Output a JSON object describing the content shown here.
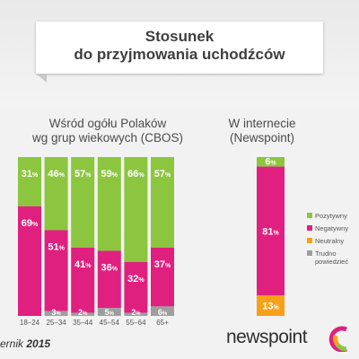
{
  "title": {
    "line1": "Stosunek",
    "line2": "do przyjmowania uchodźców"
  },
  "left_subtitle": {
    "line1": "Wśród ogółu Polaków",
    "line2": "wg grup wiekowych (CBOS)"
  },
  "right_subtitle": {
    "line1": "W internecie",
    "line2": "(Newspoint)"
  },
  "footer": {
    "date_prefix": "ernik",
    "date_year": "2015"
  },
  "logos": {
    "newspoint": "newspoint"
  },
  "colors": {
    "positive": "#8cc63f",
    "negative": "#e0207f",
    "neutral": "#f7a11a",
    "hard_to_say": "#9e9e9e"
  },
  "chart_data": [
    {
      "type": "bar",
      "stacked": true,
      "categories": [
        "18–24",
        "25–34",
        "35–44",
        "45–54",
        "55–64",
        "65+"
      ],
      "series": [
        {
          "name": "Pozytywny",
          "color": "#8cc63f",
          "values": [
            31,
            46,
            57,
            59,
            66,
            57
          ],
          "labels": [
            "31%",
            "46%",
            "57%",
            "59%",
            "66%",
            "57%"
          ]
        },
        {
          "name": "Negatywny",
          "color": "#e0207f",
          "values": [
            69,
            51,
            41,
            36,
            32,
            37
          ],
          "labels": [
            "69%",
            "51%",
            "41%",
            "36%",
            "32%",
            "37%"
          ]
        },
        {
          "name": "Trudno powiedzieć",
          "color": "#9e9e9e",
          "values": [
            0,
            3,
            2,
            5,
            2,
            6
          ],
          "labels": [
            "",
            "3%",
            "2%",
            "5%",
            "2%",
            "6%"
          ]
        }
      ],
      "ylim": [
        0,
        100
      ]
    },
    {
      "type": "bar",
      "stacked": true,
      "categories": [
        ""
      ],
      "series": [
        {
          "name": "Pozytywny",
          "color": "#8cc63f",
          "values": [
            6
          ],
          "labels": [
            "6%"
          ]
        },
        {
          "name": "Negatywny",
          "color": "#e0207f",
          "values": [
            81
          ],
          "labels": [
            "81%"
          ]
        },
        {
          "name": "Neutralny",
          "color": "#f7a11a",
          "values": [
            13
          ],
          "labels": [
            "13%"
          ]
        }
      ],
      "ylim": [
        0,
        100
      ],
      "legend": {
        "placement": "right",
        "items": [
          {
            "label": "Pozytywny",
            "color": "#8cc63f"
          },
          {
            "label": "Negatywny",
            "color": "#e0207f"
          },
          {
            "label": "Neutralny",
            "color": "#f7a11a"
          },
          {
            "label": "Trudno powiedzieć",
            "color": "#9e9e9e"
          }
        ]
      }
    }
  ]
}
